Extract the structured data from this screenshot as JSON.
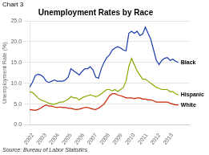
{
  "chart_data": {
    "type": "line",
    "title": "Unemployment Rates by Race",
    "ylabel": "Unemployment Rate (%)",
    "annotations": [
      "Chart 3",
      "Source: Bureau of Labor Statistics"
    ],
    "x": [
      2001.75,
      2001.967593,
      2002.185185,
      2002.402778,
      2002.62037,
      2002.837963,
      2003.055556,
      2003.273148,
      2003.490741,
      2003.708333,
      2003.925926,
      2004.143519,
      2004.361111,
      2004.578704,
      2004.796296,
      2005.013889,
      2005.231481,
      2005.449074,
      2005.666667,
      2005.884259,
      2006.101852,
      2006.319444,
      2006.537037,
      2006.75463,
      2006.972222,
      2007.189815,
      2007.407407,
      2007.625,
      2007.842593,
      2008.060185,
      2008.277778,
      2008.49537,
      2008.712963,
      2008.930556,
      2009.148148,
      2009.365741,
      2009.583333,
      2009.800926,
      2010.018519,
      2010.236111,
      2010.453704,
      2010.671296,
      2010.888889,
      2011.106481,
      2011.324074,
      2011.541667,
      2011.759259,
      2011.976852,
      2012.194444,
      2012.412037,
      2012.62963,
      2012.847222,
      2013.064815,
      2013.282407,
      2013.5
    ],
    "series": [
      {
        "name": "Black",
        "color": "#1a3aaa",
        "values": [
          9.1,
          10.2,
          11.8,
          12.2,
          12.0,
          11.5,
          10.5,
          10.2,
          10.5,
          10.8,
          10.5,
          10.5,
          10.5,
          10.8,
          11.5,
          13.5,
          13.0,
          12.5,
          12.0,
          12.8,
          13.5,
          13.5,
          14.0,
          13.2,
          11.5,
          11.2,
          13.5,
          15.0,
          16.2,
          16.8,
          18.0,
          18.5,
          18.8,
          18.5,
          18.0,
          17.8,
          22.0,
          22.5,
          22.0,
          22.5,
          21.5,
          21.8,
          23.5,
          22.0,
          20.5,
          18.0,
          15.5,
          14.5,
          15.5,
          16.0,
          16.2,
          15.5,
          15.8,
          15.3,
          15.0
        ]
      },
      {
        "name": "Hispanic",
        "color": "#88aa00",
        "values": [
          8.0,
          7.8,
          7.2,
          6.5,
          6.0,
          5.8,
          5.5,
          5.2,
          5.0,
          5.0,
          5.2,
          5.5,
          5.5,
          5.8,
          6.2,
          6.8,
          6.5,
          6.5,
          6.0,
          6.5,
          6.8,
          7.0,
          7.2,
          7.0,
          6.8,
          7.0,
          7.5,
          8.0,
          8.5,
          8.5,
          8.2,
          8.5,
          8.0,
          8.5,
          9.0,
          10.5,
          14.0,
          16.0,
          14.5,
          13.0,
          12.0,
          11.0,
          11.0,
          10.5,
          10.0,
          9.5,
          9.0,
          8.8,
          8.5,
          8.5,
          8.5,
          8.0,
          8.0,
          7.5,
          7.2
        ]
      },
      {
        "name": "White",
        "color": "#cc2200",
        "values": [
          3.7,
          3.6,
          3.5,
          3.7,
          4.0,
          4.5,
          4.8,
          4.5,
          4.5,
          4.3,
          4.2,
          4.3,
          4.2,
          4.2,
          4.0,
          4.0,
          3.8,
          3.7,
          3.8,
          4.0,
          4.2,
          4.2,
          4.0,
          3.8,
          3.7,
          4.0,
          4.5,
          5.0,
          6.0,
          7.0,
          7.5,
          7.5,
          7.2,
          7.0,
          6.8,
          6.5,
          6.5,
          6.5,
          6.3,
          6.5,
          6.5,
          6.2,
          6.2,
          6.0,
          6.0,
          5.8,
          5.5,
          5.5,
          5.5,
          5.5,
          5.5,
          5.2,
          5.0,
          4.8,
          4.8
        ]
      }
    ],
    "xlim": [
      2001.75,
      2014.4
    ],
    "xticks": [
      2002,
      2003,
      2004,
      2005,
      2006,
      2007,
      2008,
      2009,
      2010,
      2011,
      2012,
      2013
    ],
    "ylim": [
      0.0,
      25.0
    ],
    "yticks": [
      {
        "value": 0,
        "label": "0.0"
      },
      {
        "value": 5,
        "label": "5.0"
      },
      {
        "value": 10,
        "label": "10.0"
      },
      {
        "value": 15,
        "label": "15.0"
      },
      {
        "value": 20,
        "label": "20.0"
      },
      {
        "value": 25,
        "label": "25.0"
      }
    ],
    "grid": true
  }
}
